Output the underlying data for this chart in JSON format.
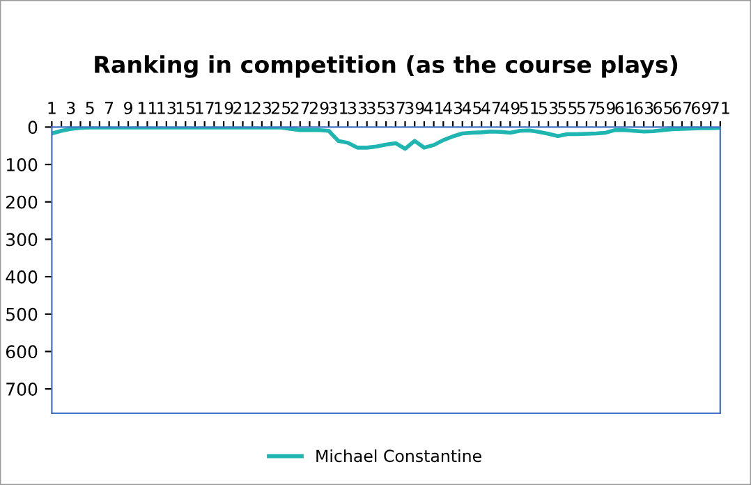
{
  "chart_data": {
    "type": "line",
    "title": "Ranking in competition (as the course plays)",
    "categories": [
      "1",
      null,
      "3",
      null,
      "5",
      null,
      "7",
      null,
      "9",
      null,
      "11",
      null,
      "13",
      null,
      "15",
      null,
      "17",
      null,
      "19",
      null,
      "21",
      null,
      "23",
      null,
      "25",
      null,
      "27",
      null,
      "29",
      null,
      "31",
      null,
      "33",
      null,
      "35",
      null,
      "37",
      null,
      "39",
      null,
      "41",
      null,
      "43",
      null,
      "45",
      null,
      "47",
      null,
      "49",
      null,
      "51",
      null,
      "53",
      null,
      "55",
      null,
      "57",
      null,
      "59",
      null,
      "61",
      null,
      "63",
      null,
      "65",
      null,
      "67",
      null,
      "69",
      null,
      "71"
    ],
    "series": [
      {
        "name": "Michael Constantine",
        "color": "#1fb5b0",
        "values": [
          17,
          10,
          5,
          2,
          1,
          1,
          1,
          1,
          1,
          1,
          1,
          1,
          1,
          1,
          1,
          1,
          1,
          1,
          1,
          1,
          1,
          1,
          1,
          1,
          1,
          5,
          8,
          8,
          8,
          10,
          37,
          42,
          55,
          55,
          52,
          47,
          43,
          58,
          37,
          55,
          48,
          35,
          25,
          17,
          15,
          14,
          12,
          13,
          15,
          10,
          9,
          13,
          18,
          24,
          19,
          19,
          18,
          17,
          15,
          8,
          8,
          10,
          12,
          11,
          8,
          6,
          5,
          4,
          3,
          3,
          2
        ]
      }
    ],
    "ylim": [
      765,
      0
    ],
    "yticks": [
      0,
      100,
      200,
      300,
      400,
      500,
      600,
      700
    ],
    "grid": false,
    "legend": "bottom",
    "marker": "none",
    "line_style": "solid"
  }
}
